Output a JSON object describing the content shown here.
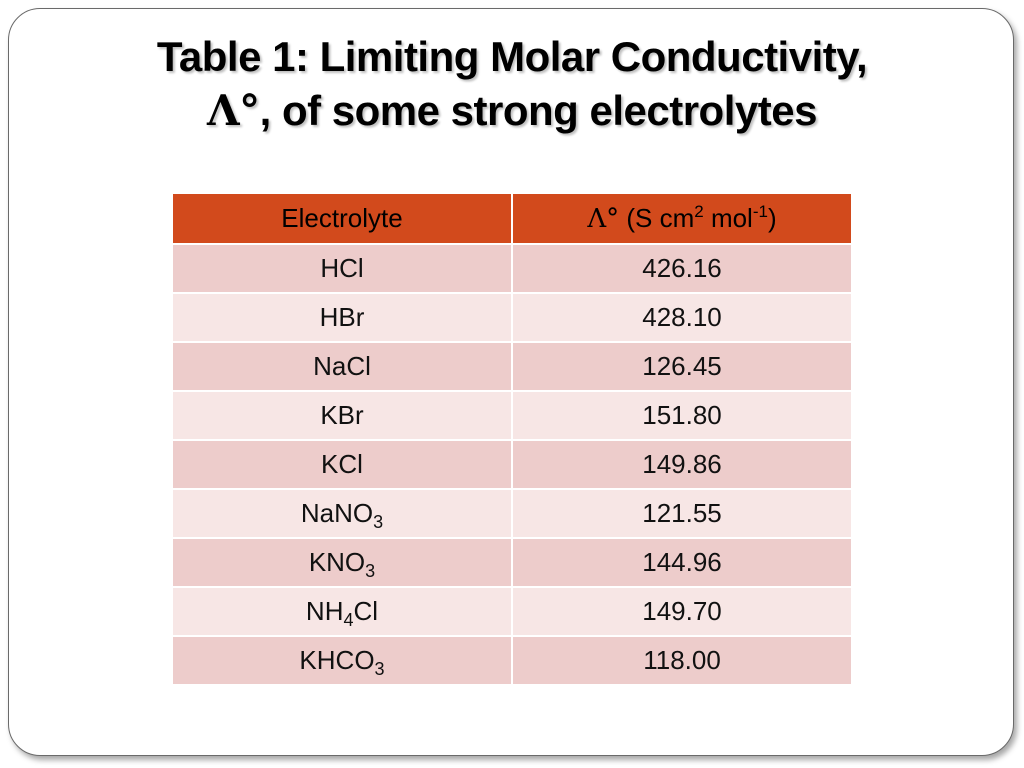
{
  "slide": {
    "title_line1": "Table 1: Limiting Molar Conductivity,",
    "title_symbol": "Λ°",
    "title_line2_rest": ", of some strong electrolytes"
  },
  "table": {
    "header": {
      "electrolyte": "Electrolyte",
      "value_symbol": "Λ°",
      "value_unit_pre": " (S cm",
      "value_unit_sup1": "2",
      "value_unit_mid": " mol",
      "value_unit_sup2": "-1",
      "value_unit_post": ")"
    },
    "rows": [
      {
        "electrolyte": "HCl",
        "sub": "",
        "suffix": "",
        "value": "426.16"
      },
      {
        "electrolyte": "HBr",
        "sub": "",
        "suffix": "",
        "value": "428.10"
      },
      {
        "electrolyte": "NaCl",
        "sub": "",
        "suffix": "",
        "value": "126.45"
      },
      {
        "electrolyte": "KBr",
        "sub": "",
        "suffix": "",
        "value": "151.80"
      },
      {
        "electrolyte": "KCl",
        "sub": "",
        "suffix": "",
        "value": "149.86"
      },
      {
        "electrolyte": "NaNO",
        "sub": "3",
        "suffix": "",
        "value": "121.55"
      },
      {
        "electrolyte": "KNO",
        "sub": "3",
        "suffix": "",
        "value": "144.96"
      },
      {
        "electrolyte": "NH",
        "sub": "4",
        "suffix": "Cl",
        "value": "149.70"
      },
      {
        "electrolyte": "KHCO",
        "sub": "3",
        "suffix": "",
        "value": "118.00"
      }
    ]
  }
}
